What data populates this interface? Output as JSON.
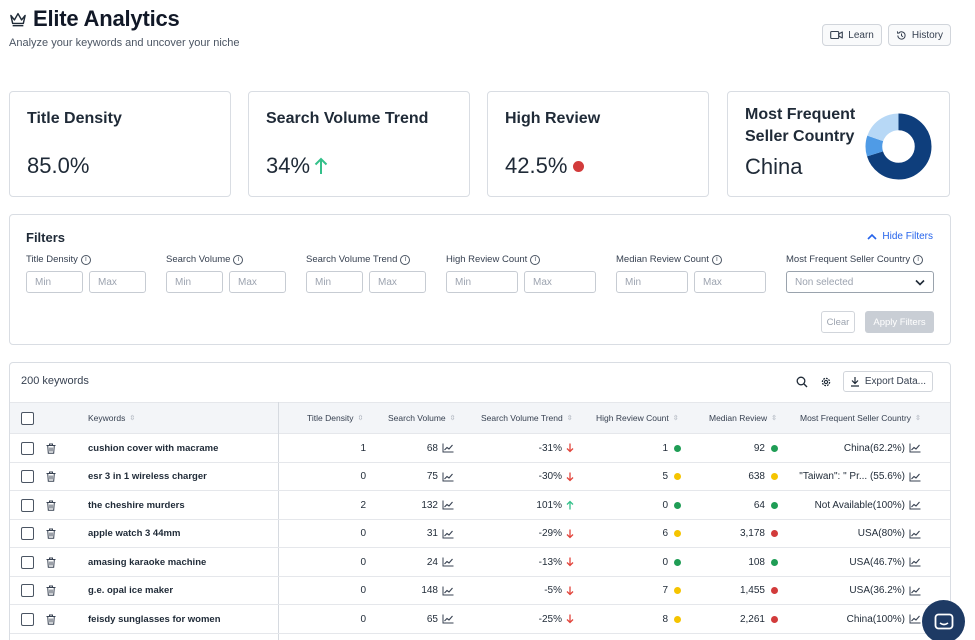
{
  "app": {
    "title": "Elite Analytics",
    "subtitle": "Analyze your keywords and uncover your niche",
    "learn_label": "Learn",
    "history_label": "History"
  },
  "cards": [
    {
      "label": "Title Density",
      "value": "85.0%"
    },
    {
      "label": "Search Volume Trend",
      "value": "34%",
      "indicator": "up-arrow",
      "indicator_color": "#34c08a"
    },
    {
      "label": "High Review",
      "value": "42.5%",
      "indicator": "dot",
      "indicator_color": "#d23b3b"
    },
    {
      "label": "Most Frequent Seller Country",
      "value": "China",
      "donut_colors": [
        "#0e3e7c",
        "#4f9be6",
        "#b7d8f6"
      ]
    }
  ],
  "filters": {
    "title": "Filters",
    "hide_label": "Hide Filters",
    "groups": [
      {
        "label": "Title Density",
        "min": "Min",
        "max": "Max"
      },
      {
        "label": "Search Volume",
        "min": "Min",
        "max": "Max"
      },
      {
        "label": "Search Volume Trend",
        "min": "Min",
        "max": "Max"
      },
      {
        "label": "High Review Count",
        "min": "Min",
        "max": "Max"
      },
      {
        "label": "Median Review Count",
        "min": "Min",
        "max": "Max"
      }
    ],
    "country_label": "Most Frequent Seller Country",
    "country_placeholder": "Non selected",
    "clear_label": "Clear",
    "apply_label": "Apply Filters"
  },
  "table": {
    "count_label": "200 keywords",
    "export_label": "Export Data...",
    "columns": {
      "keywords": "Keywords",
      "title_density": "Title Density",
      "search_volume": "Search Volume",
      "search_volume_trend": "Search Volume Trend",
      "high_review_count": "High Review Count",
      "median_review": "Median Review",
      "seller_country": "Most Frequent Seller Country"
    },
    "rows": [
      {
        "keyword": "cushion cover with macrame",
        "title_density": "1",
        "search_volume": "68",
        "trend": "-31%",
        "trend_dir": "down",
        "high_review": "1",
        "high_review_color": "#1f9d55",
        "median_review": "92",
        "median_color": "#1f9d55",
        "country": "China(62.2%)"
      },
      {
        "keyword": "esr 3 in 1 wireless charger",
        "title_density": "0",
        "search_volume": "75",
        "trend": "-30%",
        "trend_dir": "down",
        "high_review": "5",
        "high_review_color": "#f5c400",
        "median_review": "638",
        "median_color": "#f5c400",
        "country": "\"Taiwan\": \" Pr... (55.6%)"
      },
      {
        "keyword": "the cheshire murders",
        "title_density": "2",
        "search_volume": "132",
        "trend": "101%",
        "trend_dir": "up",
        "high_review": "0",
        "high_review_color": "#1f9d55",
        "median_review": "64",
        "median_color": "#1f9d55",
        "country": "Not Available(100%)"
      },
      {
        "keyword": "apple watch 3 44mm",
        "title_density": "0",
        "search_volume": "31",
        "trend": "-29%",
        "trend_dir": "down",
        "high_review": "6",
        "high_review_color": "#f5c400",
        "median_review": "3,178",
        "median_color": "#d23b3b",
        "country": "USA(80%)"
      },
      {
        "keyword": "amasing karaoke machine",
        "title_density": "0",
        "search_volume": "24",
        "trend": "-13%",
        "trend_dir": "down",
        "high_review": "0",
        "high_review_color": "#1f9d55",
        "median_review": "108",
        "median_color": "#1f9d55",
        "country": "USA(46.7%)"
      },
      {
        "keyword": "g.e. opal ice maker",
        "title_density": "0",
        "search_volume": "148",
        "trend": "-5%",
        "trend_dir": "down",
        "high_review": "7",
        "high_review_color": "#f5c400",
        "median_review": "1,455",
        "median_color": "#d23b3b",
        "country": "USA(36.2%)"
      },
      {
        "keyword": "feisdy sunglasses for women",
        "title_density": "0",
        "search_volume": "65",
        "trend": "-25%",
        "trend_dir": "down",
        "high_review": "8",
        "high_review_color": "#f5c400",
        "median_review": "2,261",
        "median_color": "#d23b3b",
        "country": "China(100%)"
      }
    ]
  }
}
